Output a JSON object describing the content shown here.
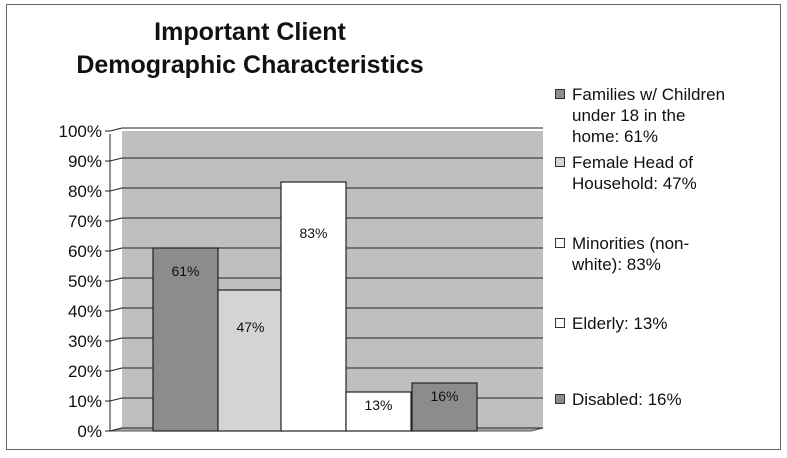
{
  "chart_data": {
    "type": "bar",
    "title_line1": "Important Client",
    "title_line2": "Demographic Characteristics",
    "ylim": [
      0,
      100
    ],
    "y_ticks": [
      "0%",
      "10%",
      "20%",
      "30%",
      "40%",
      "50%",
      "60%",
      "70%",
      "80%",
      "90%",
      "100%"
    ],
    "grid": true,
    "legend_position": "right",
    "series": [
      {
        "value": 61,
        "label": "61%",
        "color": "#8c8c8c",
        "legend_lines": [
          "Families w/ Children",
          "under 18 in the",
          "home:  61%"
        ]
      },
      {
        "value": 47,
        "label": "47%",
        "color": "#d4d4d4",
        "legend_lines": [
          "Female Head of",
          "Household:  47%"
        ]
      },
      {
        "value": 83,
        "label": "83%",
        "color": "#ffffff",
        "legend_lines": [
          "Minorities (non-",
          "white): 83%"
        ]
      },
      {
        "value": 13,
        "label": "13%",
        "color": "#ffffff",
        "legend_lines": [
          "Elderly:  13%"
        ]
      },
      {
        "value": 16,
        "label": "16%",
        "color": "#8c8c8c",
        "legend_lines": [
          "Disabled:  16%"
        ]
      }
    ]
  }
}
